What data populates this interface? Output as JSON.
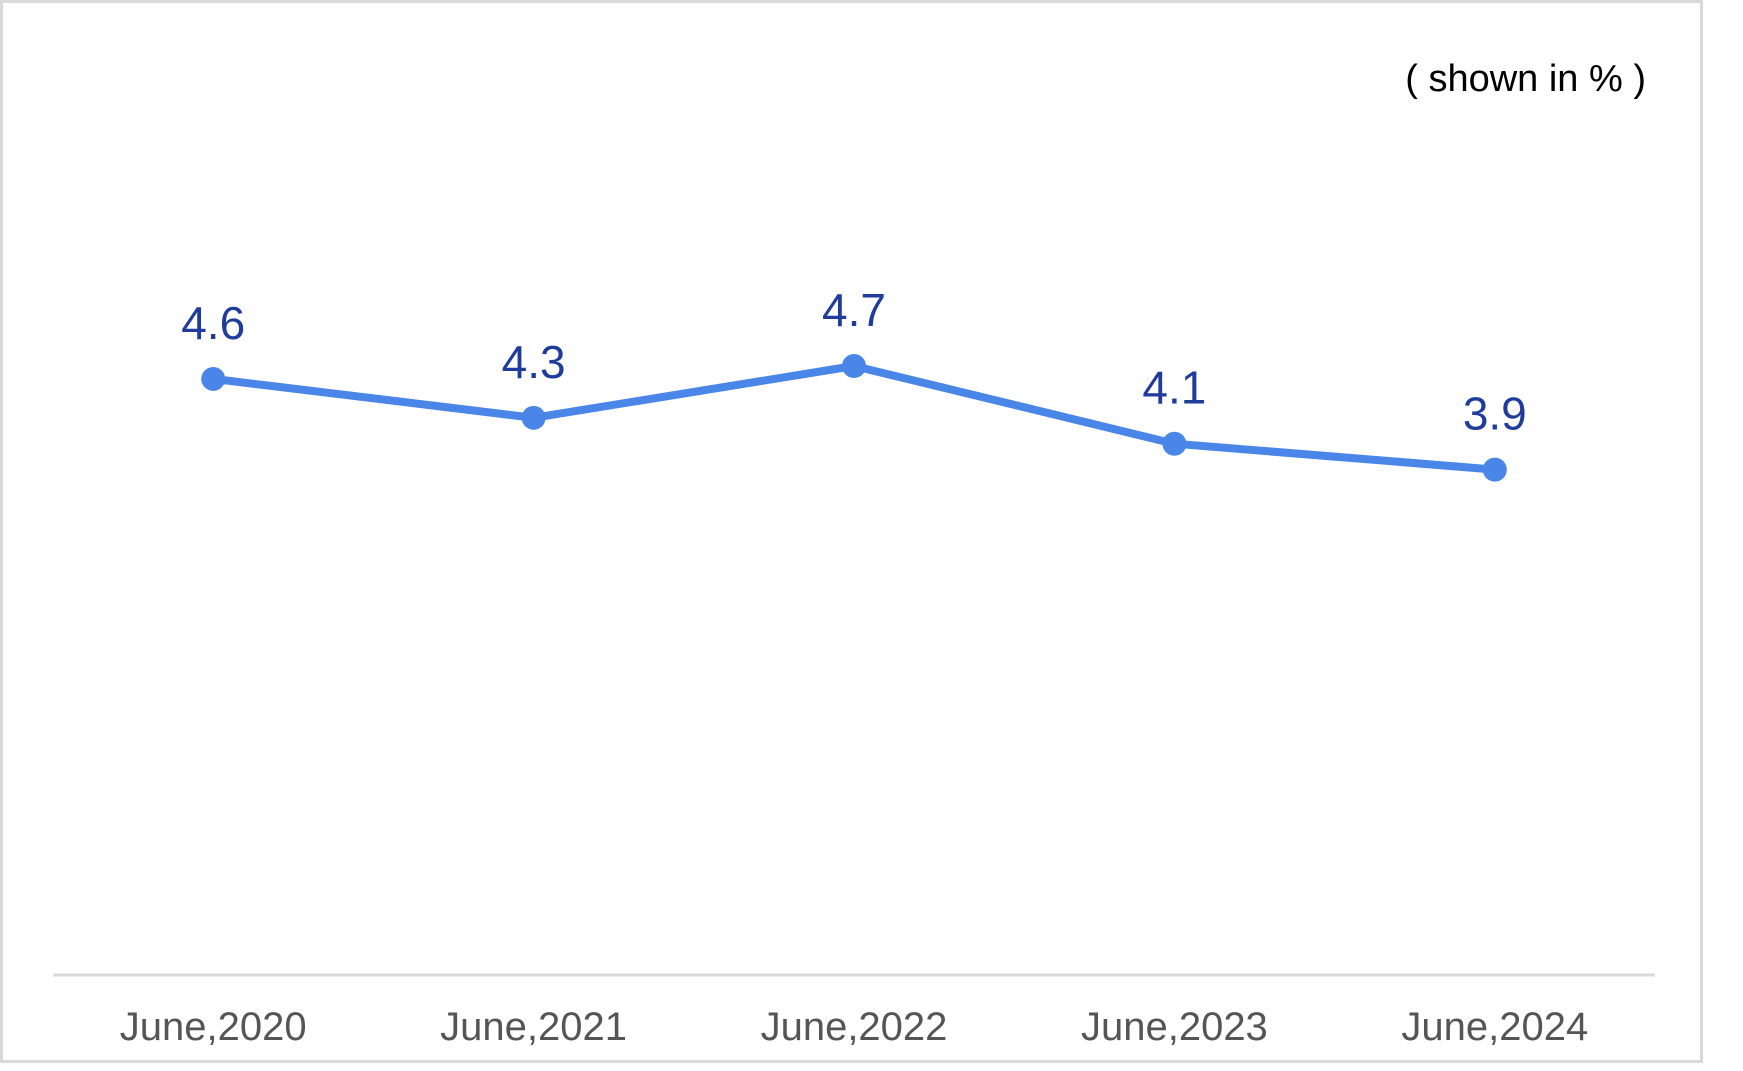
{
  "unit_note": "( shown in % )",
  "colors": {
    "line": "#4a86e8",
    "point": "#4a86e8",
    "value_label": "#1f3c9c",
    "tick_label": "#555555",
    "axis": "#d9d9d9",
    "frame": "#d9d9d9"
  },
  "chart_data": {
    "type": "line",
    "categories": [
      "June,2020",
      "June,2021",
      "June,2022",
      "June,2023",
      "June,2024"
    ],
    "values": [
      4.6,
      4.3,
      4.7,
      4.1,
      3.9
    ],
    "data_labels": [
      "4.6",
      "4.3",
      "4.7",
      "4.1",
      "3.9"
    ],
    "ylim": [
      0,
      7.1
    ],
    "grid": false,
    "legend": "none"
  }
}
